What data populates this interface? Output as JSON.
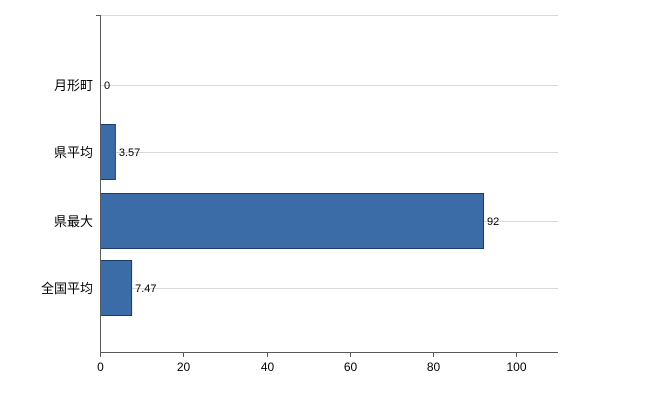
{
  "chart_data": {
    "type": "bar",
    "orientation": "horizontal",
    "title": "",
    "categories": [
      "月形町",
      "県平均",
      "県最大",
      "全国平均"
    ],
    "values": [
      0,
      3.57,
      92,
      7.47
    ],
    "value_labels": [
      "0",
      "3.57",
      "92",
      "7.47"
    ],
    "x_ticks": [
      0,
      20,
      40,
      60,
      80,
      100
    ],
    "x_tick_labels": [
      "0",
      "20",
      "40",
      "60",
      "80",
      "100"
    ],
    "xlim": [
      0,
      110
    ],
    "grid": true,
    "legend": "none",
    "colors": {
      "bar_fill": "#3C6CA8",
      "bar_border": "#1C3D66",
      "grid_line": "#D9D9D9",
      "axis_line": "#595959",
      "text": "#000000"
    }
  }
}
